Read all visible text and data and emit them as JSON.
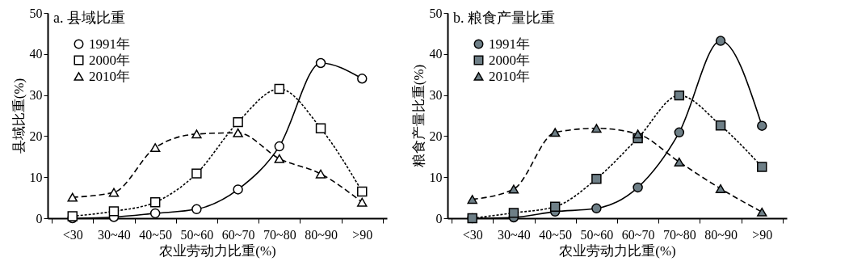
{
  "chart_data": [
    {
      "type": "line",
      "title": "a. 县域比重",
      "xlabel": "农业劳动力比重(%)",
      "ylabel": "县域比重(%)",
      "categories": [
        "<30",
        "30~40",
        "40~50",
        "50~60",
        "60~70",
        "70~80",
        "80~90",
        ">90"
      ],
      "ylim": [
        0,
        50
      ],
      "yticks": [
        0,
        10,
        20,
        30,
        40,
        50
      ],
      "grid": false,
      "legend": "top left",
      "series": [
        {
          "name": "1991年",
          "color": "#ffffff",
          "marker": "circle",
          "line_style": "solid",
          "values": [
            0,
            0.3,
            1.2,
            2.2,
            7.0,
            17.5,
            37.8,
            34.0
          ]
        },
        {
          "name": "2000年",
          "color": "#ffffff",
          "marker": "square",
          "line_style": "dotted",
          "values": [
            0.5,
            1.7,
            3.9,
            10.9,
            23.4,
            31.5,
            21.9,
            6.5
          ]
        },
        {
          "name": "2010年",
          "color": "#ffffff",
          "marker": "triangle",
          "line_style": "dashed",
          "values": [
            5.1,
            6.3,
            17.2,
            20.5,
            20.8,
            14.5,
            10.8,
            3.9
          ]
        }
      ]
    },
    {
      "type": "line",
      "title": "b. 粮食产量比重",
      "xlabel": "农业劳动力比重(%)",
      "ylabel": "粮食产量比重(%)",
      "categories": [
        "<30",
        "30~40",
        "40~50",
        "50~60",
        "60~70",
        "70~80",
        "80~90",
        ">90"
      ],
      "ylim": [
        0,
        50
      ],
      "yticks": [
        0,
        10,
        20,
        30,
        40,
        50
      ],
      "grid": false,
      "legend": "top left",
      "series": [
        {
          "name": "1991年",
          "color": "#6e7f87",
          "marker": "circle",
          "line_style": "solid",
          "values": [
            0,
            0.2,
            1.6,
            2.4,
            7.5,
            20.9,
            43.2,
            22.5
          ]
        },
        {
          "name": "2000年",
          "color": "#6e7f87",
          "marker": "square",
          "line_style": "dotted",
          "values": [
            0,
            1.3,
            2.8,
            9.6,
            19.5,
            29.9,
            22.6,
            12.5
          ]
        },
        {
          "name": "2010年",
          "color": "#6e7f87",
          "marker": "triangle",
          "line_style": "dashed",
          "values": [
            4.6,
            7.1,
            20.9,
            21.9,
            20.5,
            13.7,
            7.2,
            1.5
          ]
        }
      ]
    }
  ]
}
